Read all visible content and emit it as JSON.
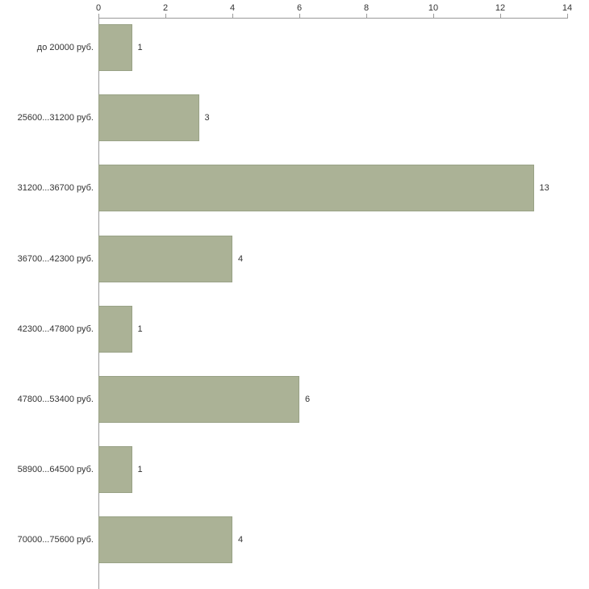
{
  "chart_data": {
    "type": "bar",
    "orientation": "horizontal",
    "title": "",
    "xlabel": "",
    "ylabel": "",
    "categories": [
      "до 20000 руб.",
      "25600...31200 руб.",
      "31200...36700 руб.",
      "36700...42300 руб.",
      "42300...47800 руб.",
      "47800...53400 руб.",
      "58900...64500 руб.",
      "70000...75600 руб."
    ],
    "values": [
      1,
      3,
      13,
      4,
      1,
      6,
      1,
      4
    ],
    "xlim": [
      0,
      14
    ],
    "x_ticks": [
      0,
      2,
      4,
      6,
      8,
      10,
      12,
      14
    ],
    "x_axis_position": "top",
    "grid": false,
    "legend": false,
    "value_labels_shown": true,
    "colors": {
      "bar_fill": "#abb296",
      "bar_border": "#99a286",
      "axis": "#9a9a9a",
      "text": "#333333",
      "background": "#ffffff"
    }
  }
}
